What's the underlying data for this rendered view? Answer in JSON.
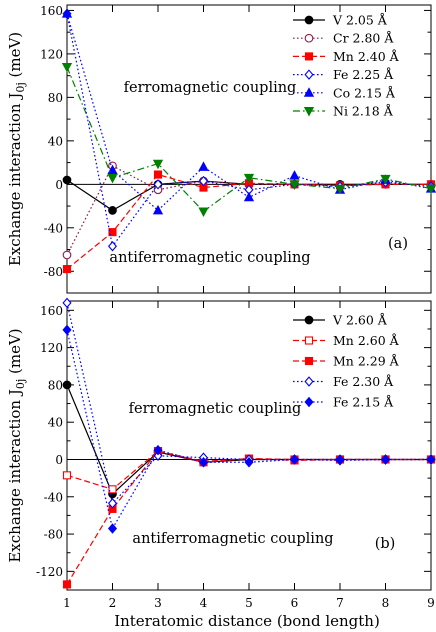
{
  "figure": {
    "xlabel": "Interatomic distance  (bond length)"
  },
  "chart_data": [
    {
      "type": "line",
      "panel_label": "(a)",
      "ylabel": "Exchange interaction J",
      "ylabel_sub": "0j",
      "ylabel_unit": "(meV)",
      "xlim": [
        1,
        9
      ],
      "ylim": [
        -100,
        165
      ],
      "yticks": [
        -80,
        -40,
        0,
        40,
        80,
        120,
        160
      ],
      "xticks": [
        1,
        2,
        3,
        4,
        5,
        6,
        7,
        8,
        9
      ],
      "annotations": [
        "ferromagnetic coupling",
        "antiferromagnetic coupling"
      ],
      "legend": "top-right",
      "x": [
        1,
        2,
        3,
        4,
        5,
        6,
        7,
        8,
        9
      ],
      "series": [
        {
          "name": "V 2.05 Å",
          "color": "#000000",
          "marker": "circle",
          "filled": true,
          "dash": "solid",
          "values": [
            4,
            -24,
            0,
            3,
            0,
            0,
            0,
            0,
            0
          ]
        },
        {
          "name": "Cr 2.80 Å",
          "color": "#8b1a4a",
          "marker": "circle",
          "filled": false,
          "dash": "dotted",
          "values": [
            -65,
            17,
            -5,
            3,
            0,
            0,
            -1,
            0,
            0
          ]
        },
        {
          "name": "Mn 2.40 Å",
          "color": "#ff0000",
          "marker": "square",
          "filled": true,
          "dash": "dashed",
          "values": [
            -78,
            -44,
            9,
            -3,
            1,
            0,
            -1,
            0,
            0
          ]
        },
        {
          "name": "Fe 2.25 Å",
          "color": "#0000ff",
          "marker": "diamond",
          "filled": false,
          "dash": "dotted",
          "values": [
            157,
            -57,
            0,
            3,
            -5,
            0,
            -2,
            2,
            -2
          ]
        },
        {
          "name": "Co 2.15 Å",
          "color": "#0000ff",
          "marker": "triangle-up",
          "filled": true,
          "dash": "dotted",
          "values": [
            157,
            13,
            -24,
            16,
            -12,
            8,
            -5,
            4,
            -4
          ]
        },
        {
          "name": "Ni 2.18 Å",
          "color": "#008000",
          "marker": "triangle-down",
          "filled": true,
          "dash": "dashdot",
          "values": [
            108,
            6,
            19,
            -25,
            6,
            0,
            -4,
            5,
            -4
          ]
        }
      ]
    },
    {
      "type": "line",
      "panel_label": "(b)",
      "ylabel": "Exchange interaction J",
      "ylabel_sub": "0j",
      "ylabel_unit": "(meV)",
      "xlim": [
        1,
        9
      ],
      "ylim": [
        -140,
        170
      ],
      "yticks": [
        -120,
        -80,
        -40,
        0,
        40,
        80,
        120,
        160
      ],
      "xticks": [
        1,
        2,
        3,
        4,
        5,
        6,
        7,
        8,
        9
      ],
      "annotations": [
        "ferromagnetic coupling",
        "antiferromagnetic coupling"
      ],
      "legend": "top-right",
      "x": [
        1,
        2,
        3,
        4,
        5,
        6,
        7,
        8,
        9
      ],
      "series": [
        {
          "name": "V 2.60 Å",
          "color": "#000000",
          "marker": "circle",
          "filled": true,
          "dash": "solid",
          "values": [
            80,
            -37,
            8,
            -3,
            0,
            0,
            0,
            0,
            0
          ]
        },
        {
          "name": "Mn 2.60 Å",
          "color": "#ff0000",
          "marker": "square",
          "filled": false,
          "dash": "dashed",
          "values": [
            -17,
            -32,
            9,
            -2,
            1,
            0,
            0,
            0,
            0
          ]
        },
        {
          "name": "Mn 2.29 Å",
          "color": "#ff0000",
          "marker": "square",
          "filled": true,
          "dash": "dashed",
          "values": [
            -134,
            -53,
            9,
            -3,
            1,
            -1,
            0,
            0,
            0
          ]
        },
        {
          "name": "Fe 2.30 Å",
          "color": "#0000ff",
          "marker": "diamond",
          "filled": false,
          "dash": "dotted",
          "values": [
            168,
            -47,
            4,
            2,
            0,
            0,
            0,
            0,
            0
          ]
        },
        {
          "name": "Fe 2.15 Å",
          "color": "#0000ff",
          "marker": "diamond",
          "filled": true,
          "dash": "dotted",
          "values": [
            139,
            -74,
            10,
            -3,
            -3,
            0,
            -1,
            0,
            0
          ]
        }
      ]
    }
  ]
}
